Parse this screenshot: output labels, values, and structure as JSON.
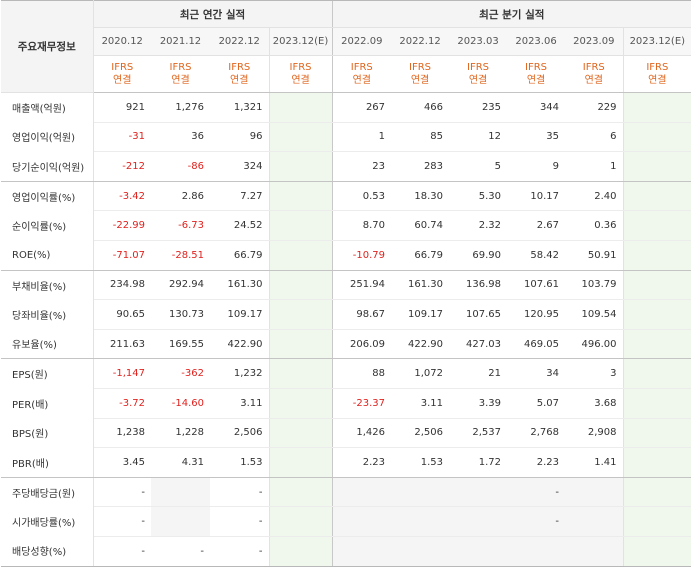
{
  "header": {
    "corner_label": "주요재무정보",
    "annual_title": "최근 연간 실적",
    "quarter_title": "최근 분기 실적"
  },
  "periods": [
    "2020.12",
    "2021.12",
    "2022.12",
    "2023.12(E)",
    "2022.09",
    "2022.12",
    "2023.03",
    "2023.06",
    "2023.09",
    "2023.12(E)"
  ],
  "ifrs": {
    "line1": "IFRS",
    "line2": "연결"
  },
  "rows": [
    {
      "label": "매출액(억원)",
      "values": [
        "921",
        "1,276",
        "1,321",
        "",
        "267",
        "466",
        "235",
        "344",
        "229",
        ""
      ]
    },
    {
      "label": "영업이익(억원)",
      "values": [
        "-31",
        "36",
        "96",
        "",
        "1",
        "85",
        "12",
        "35",
        "6",
        ""
      ]
    },
    {
      "label": "당기순이익(억원)",
      "values": [
        "-212",
        "-86",
        "324",
        "",
        "23",
        "283",
        "5",
        "9",
        "1",
        ""
      ]
    },
    {
      "label": "영업이익률(%)",
      "values": [
        "-3.42",
        "2.86",
        "7.27",
        "",
        "0.53",
        "18.30",
        "5.30",
        "10.17",
        "2.40",
        ""
      ]
    },
    {
      "label": "순이익률(%)",
      "values": [
        "-22.99",
        "-6.73",
        "24.52",
        "",
        "8.70",
        "60.74",
        "2.32",
        "2.67",
        "0.36",
        ""
      ]
    },
    {
      "label": "ROE(%)",
      "values": [
        "-71.07",
        "-28.51",
        "66.79",
        "",
        "-10.79",
        "66.79",
        "69.90",
        "58.42",
        "50.91",
        ""
      ]
    },
    {
      "label": "부채비율(%)",
      "values": [
        "234.98",
        "292.94",
        "161.30",
        "",
        "251.94",
        "161.30",
        "136.98",
        "107.61",
        "103.79",
        ""
      ]
    },
    {
      "label": "당좌비율(%)",
      "values": [
        "90.65",
        "130.73",
        "109.17",
        "",
        "98.67",
        "109.17",
        "107.65",
        "120.95",
        "109.54",
        ""
      ]
    },
    {
      "label": "유보율(%)",
      "values": [
        "211.63",
        "169.55",
        "422.90",
        "",
        "206.09",
        "422.90",
        "427.03",
        "469.05",
        "496.00",
        ""
      ]
    },
    {
      "label": "EPS(원)",
      "values": [
        "-1,147",
        "-362",
        "1,232",
        "",
        "88",
        "1,072",
        "21",
        "34",
        "3",
        ""
      ]
    },
    {
      "label": "PER(배)",
      "values": [
        "-3.72",
        "-14.60",
        "3.11",
        "",
        "-23.37",
        "3.11",
        "3.39",
        "5.07",
        "3.68",
        ""
      ]
    },
    {
      "label": "BPS(원)",
      "values": [
        "1,238",
        "1,228",
        "2,506",
        "",
        "1,426",
        "2,506",
        "2,537",
        "2,768",
        "2,908",
        ""
      ]
    },
    {
      "label": "PBR(배)",
      "values": [
        "3.45",
        "4.31",
        "1.53",
        "",
        "2.23",
        "1.53",
        "1.72",
        "2.23",
        "1.41",
        ""
      ]
    },
    {
      "label": "주당배당금(원)",
      "values": [
        "-",
        "",
        "-",
        "",
        "",
        "",
        "",
        "-",
        "",
        ""
      ]
    },
    {
      "label": "시가배당률(%)",
      "values": [
        "-",
        "",
        "-",
        "",
        "",
        "",
        "",
        "-",
        "",
        ""
      ]
    },
    {
      "label": "배당성향(%)",
      "values": [
        "-",
        "-",
        "-",
        "",
        "",
        "",
        "",
        "",
        "",
        ""
      ]
    }
  ]
}
